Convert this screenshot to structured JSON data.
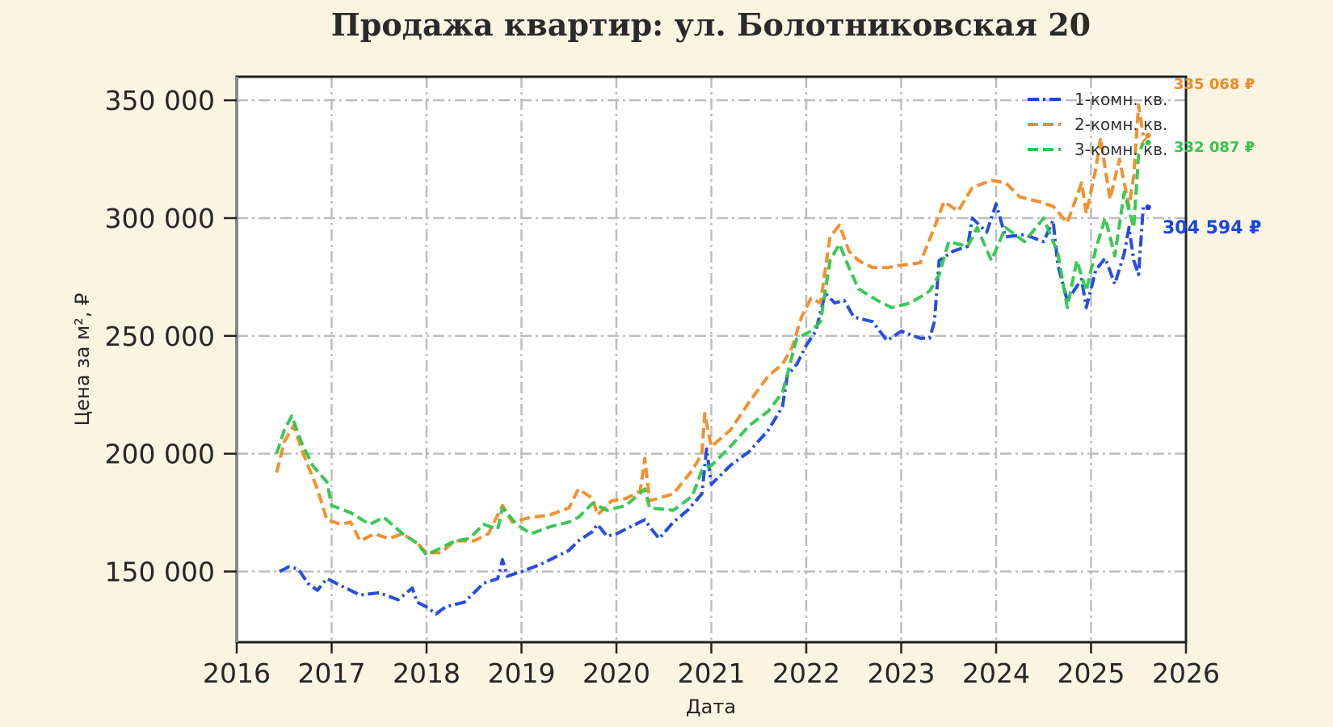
{
  "chart_data": {
    "type": "line",
    "title": "Продажа квартир: ул. Болотниковская 20",
    "xlabel": "Дата",
    "ylabel": "Цена за м², ₽",
    "xlim": [
      2016,
      2026
    ],
    "ylim": [
      120000,
      360000
    ],
    "x_ticks": [
      2016,
      2017,
      2018,
      2019,
      2020,
      2021,
      2022,
      2023,
      2024,
      2025,
      2026
    ],
    "y_ticks": [
      150000,
      200000,
      250000,
      300000,
      350000
    ],
    "y_tick_labels": [
      "150 000",
      "200 000",
      "250 000",
      "300 000",
      "350 000"
    ],
    "grid": true,
    "legend_position": "top-right",
    "series": [
      {
        "name": "1-комн. кв.",
        "color": "#1a45e0",
        "style": "dashdot",
        "points": [
          [
            2016.45,
            150000
          ],
          [
            2016.55,
            152000
          ],
          [
            2016.65,
            151000
          ],
          [
            2016.75,
            145000
          ],
          [
            2016.85,
            142000
          ],
          [
            2016.95,
            147000
          ],
          [
            2017.1,
            144000
          ],
          [
            2017.3,
            140000
          ],
          [
            2017.5,
            141000
          ],
          [
            2017.7,
            138000
          ],
          [
            2017.85,
            143000
          ],
          [
            2017.9,
            137000
          ],
          [
            2018.0,
            135000
          ],
          [
            2018.1,
            132000
          ],
          [
            2018.2,
            135000
          ],
          [
            2018.4,
            137000
          ],
          [
            2018.5,
            141000
          ],
          [
            2018.6,
            145000
          ],
          [
            2018.75,
            147000
          ],
          [
            2018.8,
            155000
          ],
          [
            2018.85,
            148000
          ],
          [
            2019.0,
            150000
          ],
          [
            2019.2,
            153000
          ],
          [
            2019.4,
            157000
          ],
          [
            2019.5,
            159000
          ],
          [
            2019.6,
            163000
          ],
          [
            2019.75,
            167000
          ],
          [
            2019.8,
            170000
          ],
          [
            2019.9,
            165000
          ],
          [
            2020.0,
            166000
          ],
          [
            2020.2,
            170000
          ],
          [
            2020.3,
            172000
          ],
          [
            2020.35,
            169000
          ],
          [
            2020.45,
            164000
          ],
          [
            2020.6,
            171000
          ],
          [
            2020.75,
            176000
          ],
          [
            2020.9,
            183000
          ],
          [
            2020.95,
            202000
          ],
          [
            2021.0,
            187000
          ],
          [
            2021.2,
            195000
          ],
          [
            2021.4,
            201000
          ],
          [
            2021.6,
            210000
          ],
          [
            2021.75,
            220000
          ],
          [
            2021.8,
            233000
          ],
          [
            2021.9,
            238000
          ],
          [
            2022.0,
            246000
          ],
          [
            2022.1,
            252000
          ],
          [
            2022.2,
            268000
          ],
          [
            2022.3,
            264000
          ],
          [
            2022.4,
            265000
          ],
          [
            2022.5,
            258000
          ],
          [
            2022.7,
            256000
          ],
          [
            2022.85,
            248000
          ],
          [
            2023.0,
            252000
          ],
          [
            2023.2,
            249000
          ],
          [
            2023.3,
            249000
          ],
          [
            2023.35,
            256000
          ],
          [
            2023.4,
            282000
          ],
          [
            2023.55,
            286000
          ],
          [
            2023.7,
            288000
          ],
          [
            2023.75,
            300000
          ],
          [
            2023.9,
            294000
          ],
          [
            2024.0,
            306000
          ],
          [
            2024.1,
            292000
          ],
          [
            2024.3,
            293000
          ],
          [
            2024.5,
            290000
          ],
          [
            2024.6,
            299000
          ],
          [
            2024.65,
            280000
          ],
          [
            2024.75,
            265000
          ],
          [
            2024.9,
            274000
          ],
          [
            2024.95,
            262000
          ],
          [
            2025.05,
            278000
          ],
          [
            2025.15,
            283000
          ],
          [
            2025.25,
            272000
          ],
          [
            2025.35,
            285000
          ],
          [
            2025.4,
            296000
          ],
          [
            2025.45,
            282000
          ],
          [
            2025.5,
            276000
          ],
          [
            2025.55,
            304594
          ]
        ]
      },
      {
        "name": "2-комн. кв.",
        "color": "#f28a24",
        "style": "dashed",
        "points": [
          [
            2016.42,
            192000
          ],
          [
            2016.5,
            205000
          ],
          [
            2016.6,
            212000
          ],
          [
            2016.7,
            200000
          ],
          [
            2016.85,
            185000
          ],
          [
            2016.95,
            172000
          ],
          [
            2017.1,
            170000
          ],
          [
            2017.2,
            171000
          ],
          [
            2017.3,
            163000
          ],
          [
            2017.45,
            166000
          ],
          [
            2017.6,
            164000
          ],
          [
            2017.75,
            166000
          ],
          [
            2017.9,
            162000
          ],
          [
            2018.0,
            158000
          ],
          [
            2018.15,
            158000
          ],
          [
            2018.3,
            163000
          ],
          [
            2018.5,
            163000
          ],
          [
            2018.65,
            166000
          ],
          [
            2018.8,
            178000
          ],
          [
            2018.9,
            171000
          ],
          [
            2019.1,
            173000
          ],
          [
            2019.3,
            174000
          ],
          [
            2019.5,
            177000
          ],
          [
            2019.6,
            185000
          ],
          [
            2019.75,
            181000
          ],
          [
            2019.8,
            174000
          ],
          [
            2019.95,
            180000
          ],
          [
            2020.1,
            181000
          ],
          [
            2020.25,
            184000
          ],
          [
            2020.3,
            198000
          ],
          [
            2020.35,
            180000
          ],
          [
            2020.6,
            183000
          ],
          [
            2020.8,
            193000
          ],
          [
            2020.9,
            200000
          ],
          [
            2020.93,
            217000
          ],
          [
            2021.0,
            203000
          ],
          [
            2021.2,
            210000
          ],
          [
            2021.4,
            222000
          ],
          [
            2021.6,
            233000
          ],
          [
            2021.75,
            238000
          ],
          [
            2021.85,
            245000
          ],
          [
            2021.95,
            258000
          ],
          [
            2022.05,
            266000
          ],
          [
            2022.15,
            264000
          ],
          [
            2022.25,
            292000
          ],
          [
            2022.35,
            297000
          ],
          [
            2022.45,
            286000
          ],
          [
            2022.55,
            282000
          ],
          [
            2022.7,
            279000
          ],
          [
            2022.85,
            279000
          ],
          [
            2023.0,
            280000
          ],
          [
            2023.2,
            281000
          ],
          [
            2023.35,
            296000
          ],
          [
            2023.45,
            307000
          ],
          [
            2023.6,
            303000
          ],
          [
            2023.75,
            313000
          ],
          [
            2023.95,
            316000
          ],
          [
            2024.1,
            315000
          ],
          [
            2024.25,
            309000
          ],
          [
            2024.45,
            307000
          ],
          [
            2024.6,
            305000
          ],
          [
            2024.75,
            298000
          ],
          [
            2024.9,
            315000
          ],
          [
            2024.95,
            302000
          ],
          [
            2025.05,
            321000
          ],
          [
            2025.1,
            334000
          ],
          [
            2025.2,
            308000
          ],
          [
            2025.3,
            325000
          ],
          [
            2025.4,
            305000
          ],
          [
            2025.45,
            318000
          ],
          [
            2025.5,
            348000
          ],
          [
            2025.55,
            335068
          ]
        ]
      },
      {
        "name": "3-комн. кв.",
        "color": "#2ec74a",
        "style": "dashed",
        "points": [
          [
            2016.42,
            200000
          ],
          [
            2016.5,
            210000
          ],
          [
            2016.58,
            216000
          ],
          [
            2016.68,
            205000
          ],
          [
            2016.8,
            195000
          ],
          [
            2016.95,
            188000
          ],
          [
            2017.0,
            178000
          ],
          [
            2017.2,
            175000
          ],
          [
            2017.4,
            170000
          ],
          [
            2017.55,
            173000
          ],
          [
            2017.75,
            166000
          ],
          [
            2017.9,
            162000
          ],
          [
            2018.0,
            157000
          ],
          [
            2018.1,
            159000
          ],
          [
            2018.3,
            163000
          ],
          [
            2018.45,
            164000
          ],
          [
            2018.6,
            170000
          ],
          [
            2018.75,
            168000
          ],
          [
            2018.8,
            177000
          ],
          [
            2018.95,
            170000
          ],
          [
            2019.1,
            166000
          ],
          [
            2019.3,
            169000
          ],
          [
            2019.5,
            171000
          ],
          [
            2019.6,
            173000
          ],
          [
            2019.75,
            179000
          ],
          [
            2019.9,
            176000
          ],
          [
            2020.1,
            178000
          ],
          [
            2020.3,
            185000
          ],
          [
            2020.35,
            177000
          ],
          [
            2020.6,
            176000
          ],
          [
            2020.8,
            182000
          ],
          [
            2020.9,
            193000
          ],
          [
            2021.0,
            195000
          ],
          [
            2021.2,
            203000
          ],
          [
            2021.4,
            212000
          ],
          [
            2021.6,
            218000
          ],
          [
            2021.75,
            226000
          ],
          [
            2021.9,
            249000
          ],
          [
            2022.05,
            252000
          ],
          [
            2022.15,
            256000
          ],
          [
            2022.25,
            282000
          ],
          [
            2022.35,
            289000
          ],
          [
            2022.45,
            279000
          ],
          [
            2022.55,
            270000
          ],
          [
            2022.75,
            265000
          ],
          [
            2022.9,
            262000
          ],
          [
            2023.1,
            264000
          ],
          [
            2023.3,
            269000
          ],
          [
            2023.4,
            276000
          ],
          [
            2023.5,
            290000
          ],
          [
            2023.7,
            288000
          ],
          [
            2023.8,
            296000
          ],
          [
            2023.95,
            282000
          ],
          [
            2024.1,
            296000
          ],
          [
            2024.3,
            290000
          ],
          [
            2024.5,
            300000
          ],
          [
            2024.65,
            285000
          ],
          [
            2024.75,
            262000
          ],
          [
            2024.85,
            282000
          ],
          [
            2024.95,
            269000
          ],
          [
            2025.05,
            287000
          ],
          [
            2025.15,
            300000
          ],
          [
            2025.25,
            284000
          ],
          [
            2025.35,
            311000
          ],
          [
            2025.45,
            296000
          ],
          [
            2025.5,
            327000
          ],
          [
            2025.55,
            332087
          ]
        ]
      }
    ],
    "annotations": [
      {
        "text": "335 068 ₽",
        "color": "#f28a24",
        "x": 2025.55,
        "y": 335068
      },
      {
        "text": "332 087 ₽",
        "color": "#2ec74a",
        "x": 2025.55,
        "y": 332087
      },
      {
        "text": "304 594 ₽",
        "color": "#1a45e0",
        "x": 2025.55,
        "y": 304594
      }
    ]
  }
}
